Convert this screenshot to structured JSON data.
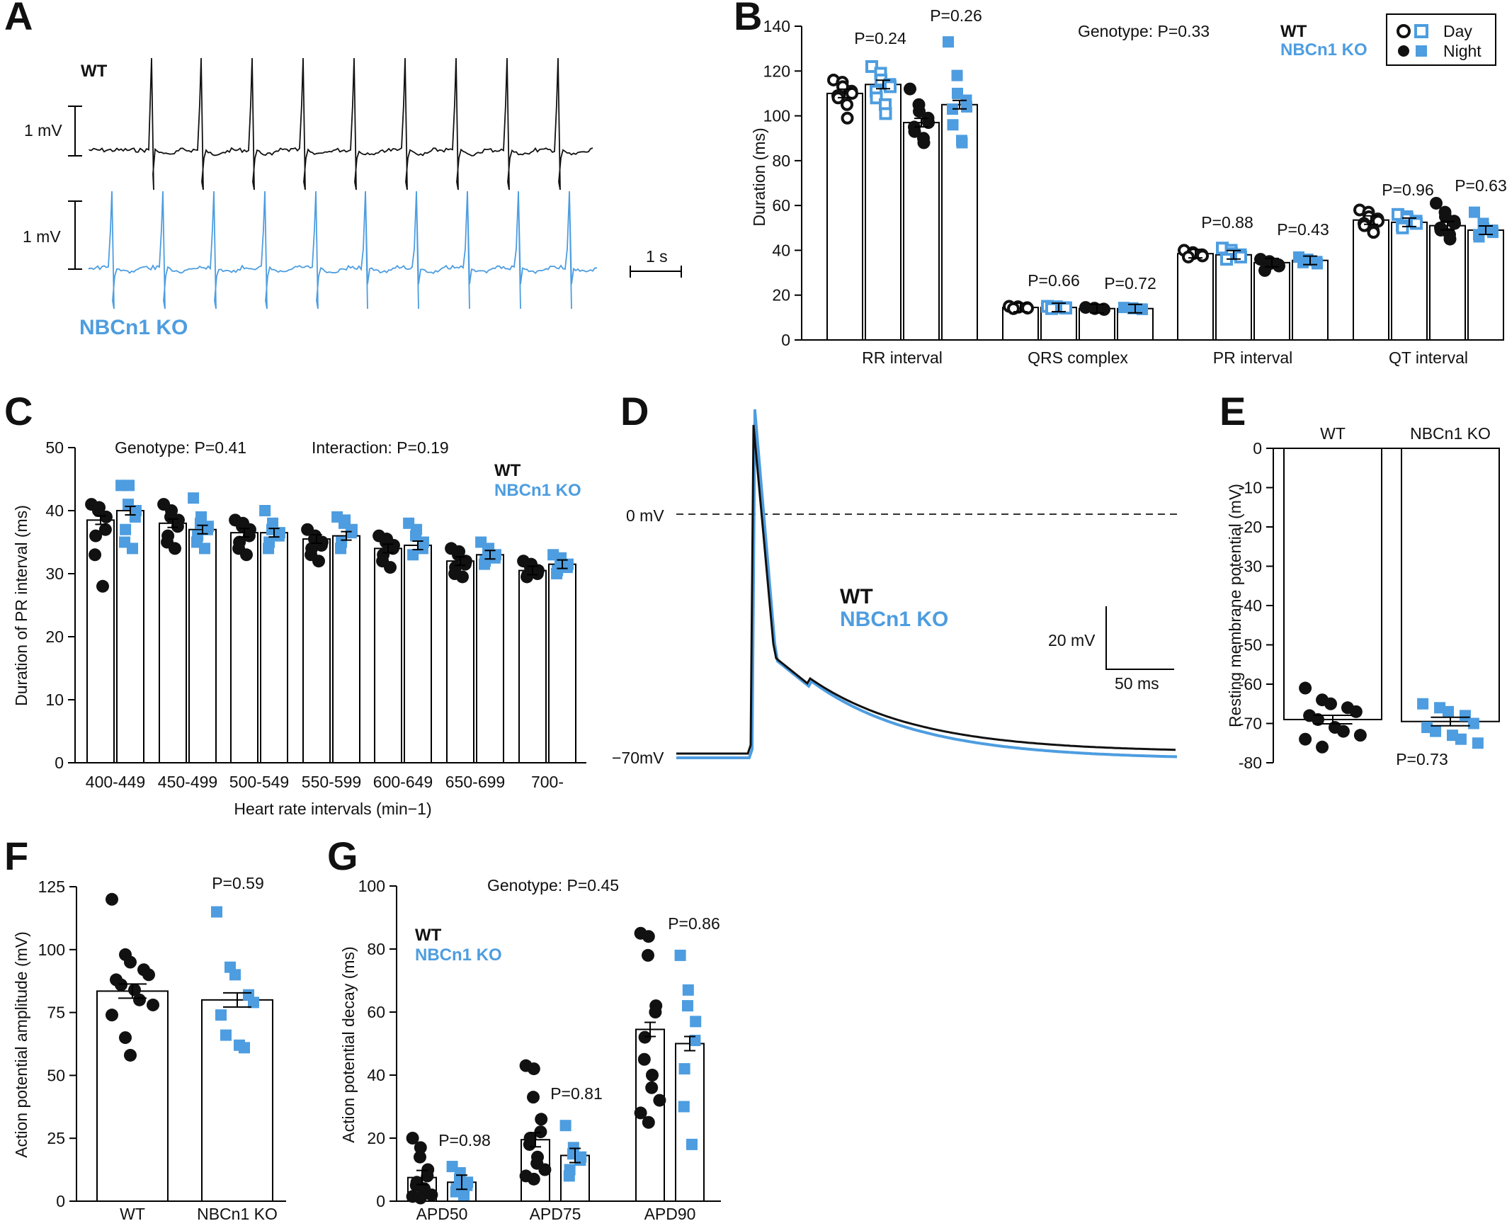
{
  "colors": {
    "wt": "#111111",
    "ko": "#4d9de0"
  },
  "panels": {
    "A": {
      "letter": "A",
      "wt_label": "WT",
      "ko_label": "NBCn1 KO",
      "wt_scale": "1 mV",
      "ko_scale": "1 mV",
      "time_scale": "1 s"
    },
    "B": {
      "letter": "B",
      "genotype_p": "Genotype: P=0.33",
      "legend_wt": "WT",
      "legend_ko": "NBCn1 KO",
      "legend_day": "Day",
      "legend_night": "Night",
      "p_values": [
        "P=0.24",
        "P=0.26",
        "P=0.66",
        "P=0.72",
        "P=0.88",
        "P=0.43",
        "P=0.96",
        "P=0.63"
      ]
    },
    "C": {
      "letter": "C",
      "genotype_p": "Genotype: P=0.41",
      "interaction_p": "Interaction: P=0.19",
      "legend_wt": "WT",
      "legend_ko": "NBCn1 KO"
    },
    "D": {
      "letter": "D",
      "zero_label": "0 mV",
      "rest_label": "−70mV",
      "legend_wt": "WT",
      "legend_ko": "NBCn1 KO",
      "v_scale": "20 mV",
      "t_scale": "50 ms"
    },
    "E": {
      "letter": "E",
      "p_value": "P=0.73"
    },
    "F": {
      "letter": "F",
      "p_value": "P=0.59"
    },
    "G": {
      "letter": "G",
      "genotype_p": "Genotype: P=0.45",
      "legend_wt": "WT",
      "legend_ko": "NBCn1 KO",
      "p_values": [
        "P=0.98",
        "P=0.81",
        "P=0.86"
      ]
    }
  },
  "chart_data": [
    {
      "type": "bar",
      "panel": "B",
      "ylabel": "Duration (ms)",
      "ylim": [
        0,
        140
      ],
      "yticks": [
        0,
        20,
        40,
        60,
        80,
        100,
        120,
        140
      ],
      "categories": [
        "RR interval",
        "QRS complex",
        "PR interval",
        "QT interval"
      ],
      "series": [
        {
          "name": "WT Day",
          "values": [
            110,
            14.5,
            38.5,
            53.5
          ],
          "points": [
            [
              116,
              115,
              113,
              111,
              110,
              109,
              108,
              105,
              99
            ],
            [
              15,
              14.8,
              14.6,
              14.4,
              14.2,
              14
            ],
            [
              40,
              39,
              38.5,
              38,
              37.5,
              37
            ],
            [
              58,
              57,
              55,
              54,
              53,
              52,
              51,
              49,
              48
            ]
          ]
        },
        {
          "name": "NBCn1 KO Day",
          "values": [
            114,
            14.5,
            38,
            52.5
          ],
          "points": [
            [
              122,
              119,
              116,
              114,
              113,
              111,
              108,
              105,
              101
            ],
            [
              15,
              14.8,
              14.6,
              14.4,
              14.2,
              14
            ],
            [
              41,
              40,
              38.5,
              38,
              37,
              36
            ],
            [
              56,
              55,
              54,
              53,
              52,
              51,
              50
            ]
          ]
        },
        {
          "name": "WT Night",
          "values": [
            97,
            14,
            34.5,
            51
          ],
          "points": [
            [
              112,
              105,
              102,
              99,
              97,
              95,
              93,
              90,
              88
            ],
            [
              14.5,
              14.2,
              14,
              13.8,
              13.6
            ],
            [
              36,
              35,
              34,
              33.5,
              33,
              31
            ],
            [
              61,
              57,
              55,
              53,
              52,
              50,
              49,
              47,
              45
            ]
          ]
        },
        {
          "name": "NBCn1 KO Night",
          "values": [
            105,
            14,
            35.5,
            49
          ],
          "points": [
            [
              133,
              118,
              110,
              107,
              104,
              103,
              96,
              89,
              88
            ],
            [
              14.5,
              14.3,
              14,
              13.8,
              13.6
            ],
            [
              37,
              36,
              35.5,
              35,
              34,
              34.5
            ],
            [
              57,
              52,
              50,
              49,
              48,
              47,
              46
            ]
          ]
        }
      ]
    },
    {
      "type": "bar",
      "panel": "C",
      "xlabel": "Heart rate intervals (min−1)",
      "ylabel": "Duration of PR interval (ms)",
      "ylim": [
        0,
        50
      ],
      "yticks": [
        0,
        10,
        20,
        30,
        40,
        50
      ],
      "categories": [
        "400-449",
        "450-499",
        "500-549",
        "550-599",
        "600-649",
        "650-699",
        "700-"
      ],
      "series": [
        {
          "name": "WT",
          "values": [
            38.5,
            38,
            36.5,
            35.5,
            34,
            32,
            30.5
          ],
          "points": [
            [
              41,
              40.5,
              40,
              39,
              37,
              36,
              33,
              28
            ],
            [
              41,
              40,
              39,
              38.5,
              37.5,
              36,
              35,
              34
            ],
            [
              38.5,
              38,
              37.5,
              37,
              36,
              35,
              34,
              33
            ],
            [
              37,
              36,
              35.5,
              35,
              34.5,
              34,
              33,
              32
            ],
            [
              36,
              35.5,
              35,
              34.5,
              34,
              33,
              32,
              31
            ],
            [
              34,
              33.5,
              33,
              32,
              31.5,
              31,
              30,
              29.5
            ],
            [
              32,
              31.5,
              31,
              30.5,
              30,
              29.8,
              29.5
            ]
          ]
        },
        {
          "name": "NBCn1 KO",
          "values": [
            40,
            37,
            36.5,
            36,
            34.5,
            33,
            31.5
          ],
          "points": [
            [
              44,
              44,
              41,
              40,
              39,
              37,
              35,
              34
            ],
            [
              42,
              39,
              38,
              37.5,
              37,
              36,
              35,
              34
            ],
            [
              40,
              38,
              37,
              36.5,
              36,
              35,
              34
            ],
            [
              39,
              38.5,
              38,
              37,
              36.5,
              35,
              34
            ],
            [
              38,
              37,
              36,
              35,
              34,
              33
            ],
            [
              35,
              34,
              33.5,
              33,
              32.5,
              32,
              31.5
            ],
            [
              33,
              32.5,
              32,
              31.5,
              31,
              30.5,
              30
            ]
          ]
        }
      ]
    },
    {
      "type": "bar",
      "panel": "E",
      "ylabel": "Resting membrane potential (mV)",
      "ylim": [
        -80,
        0
      ],
      "yticks": [
        0,
        -10,
        -20,
        -30,
        -40,
        -50,
        -60,
        -70,
        -80
      ],
      "categories": [
        "WT",
        "NBCn1 KO"
      ],
      "values": [
        -69,
        -69.5
      ],
      "points": [
        [
          -61,
          -64,
          -65,
          -66,
          -67,
          -68,
          -69,
          -71,
          -72,
          -73,
          -74,
          -76
        ],
        [
          -65,
          -66,
          -67,
          -68,
          -70,
          -71,
          -72,
          -73,
          -74,
          -75
        ]
      ]
    },
    {
      "type": "bar",
      "panel": "F",
      "ylabel": "Action potential amplitude (mV)",
      "ylim": [
        0,
        125
      ],
      "yticks": [
        0,
        25,
        50,
        75,
        100,
        125
      ],
      "categories": [
        "WT",
        "NBCn1 KO"
      ],
      "values": [
        83.5,
        80
      ],
      "points": [
        [
          120,
          98,
          95,
          92,
          90,
          88,
          86,
          84,
          80,
          78,
          74,
          65,
          58
        ],
        [
          115,
          93,
          90,
          82,
          79,
          74,
          66,
          62,
          61
        ]
      ]
    },
    {
      "type": "bar",
      "panel": "G",
      "ylabel": "Action potential decay (ms)",
      "ylim": [
        0,
        100
      ],
      "yticks": [
        0,
        20,
        40,
        60,
        80,
        100
      ],
      "categories": [
        "APD50",
        "APD75",
        "APD90"
      ],
      "series": [
        {
          "name": "WT",
          "values": [
            7.5,
            19.5,
            54.5
          ],
          "points": [
            [
              20,
              17,
              14,
              10,
              8,
              6,
              5,
              4,
              3,
              2,
              1.5,
              1
            ],
            [
              43,
              42,
              33,
              26,
              22,
              20,
              18,
              14,
              12,
              10,
              8,
              7
            ],
            [
              85,
              84,
              78,
              62,
              60,
              52,
              45,
              40,
              36,
              32,
              28,
              25
            ]
          ]
        },
        {
          "name": "NBCn1 KO",
          "values": [
            6,
            14.5,
            50
          ],
          "points": [
            [
              11,
              9,
              7,
              6,
              5,
              4,
              3,
              2
            ],
            [
              24,
              17,
              15,
              14,
              13,
              10,
              8
            ],
            [
              78,
              67,
              62,
              57,
              51,
              42,
              30,
              18
            ]
          ]
        }
      ]
    },
    {
      "type": "line",
      "panel": "D",
      "series": [
        {
          "name": "WT"
        },
        {
          "name": "NBCn1 KO"
        }
      ]
    }
  ]
}
